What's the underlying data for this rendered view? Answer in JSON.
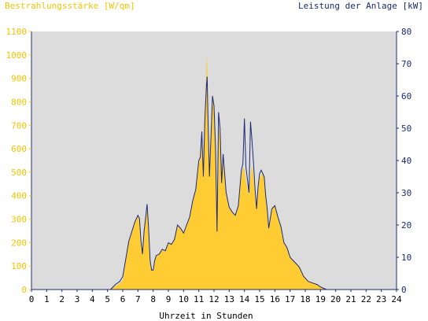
{
  "chart_data": {
    "type": "area",
    "title_left": "Bestrahlungsstärke [W/qm]",
    "title_right": "Leistung der Anlage [kW]",
    "xlabel": "Uhrzeit in Stunden",
    "grid": false,
    "x_ticks": [
      "0",
      "1",
      "2",
      "3",
      "4",
      "5",
      "6",
      "7",
      "8",
      "9",
      "10",
      "11",
      "12",
      "13",
      "14",
      "15",
      "16",
      "17",
      "18",
      "19",
      "20",
      "21",
      "22",
      "23",
      "24"
    ],
    "xlim": [
      0,
      24
    ],
    "y_left": {
      "ticks": [
        "0",
        "100",
        "200",
        "300",
        "400",
        "500",
        "600",
        "700",
        "800",
        "900",
        "1000",
        "1100"
      ],
      "range": [
        0,
        1100
      ]
    },
    "y_right": {
      "ticks": [
        "0",
        "10",
        "20",
        "30",
        "40",
        "50",
        "60",
        "70",
        "80"
      ],
      "range": [
        0,
        80
      ]
    },
    "colors": {
      "plot_background": "#dcdcdc",
      "area_fill": "#ffcc33",
      "line": "#1b2a78",
      "left_axis_text": "#f5c400",
      "right_axis_text": "#1b2a78"
    },
    "series": [
      {
        "axis": "left",
        "style": "area",
        "x": [
          0,
          5.2,
          5.5,
          5.8,
          6.0,
          6.2,
          6.4,
          6.6,
          6.8,
          7.0,
          7.1,
          7.2,
          7.3,
          7.4,
          7.5,
          7.6,
          7.7,
          7.8,
          7.9,
          8.0,
          8.1,
          8.2,
          8.4,
          8.6,
          8.8,
          9.0,
          9.2,
          9.4,
          9.6,
          9.8,
          10.0,
          10.2,
          10.4,
          10.6,
          10.8,
          11.0,
          11.1,
          11.2,
          11.3,
          11.4,
          11.5,
          11.55,
          11.6,
          11.7,
          11.8,
          11.9,
          12.0,
          12.1,
          12.2,
          12.3,
          12.4,
          12.5,
          12.6,
          12.8,
          13.0,
          13.2,
          13.4,
          13.6,
          13.8,
          13.9,
          14.0,
          14.1,
          14.2,
          14.3,
          14.4,
          14.5,
          14.6,
          14.7,
          14.8,
          14.9,
          15.0,
          15.1,
          15.2,
          15.3,
          15.4,
          15.5,
          15.6,
          15.8,
          16.0,
          16.2,
          16.4,
          16.6,
          16.8,
          17.0,
          17.3,
          17.6,
          17.9,
          18.2,
          18.5,
          18.8,
          19.0,
          19.2,
          19.4,
          19.6,
          19.8,
          20,
          24
        ],
        "values": [
          0,
          0,
          15,
          25,
          40,
          120,
          200,
          240,
          290,
          310,
          300,
          200,
          150,
          250,
          300,
          340,
          260,
          120,
          80,
          80,
          120,
          140,
          150,
          170,
          160,
          200,
          190,
          210,
          270,
          260,
          240,
          270,
          310,
          380,
          420,
          540,
          550,
          700,
          460,
          750,
          950,
          1000,
          700,
          450,
          640,
          830,
          780,
          600,
          300,
          700,
          650,
          440,
          560,
          400,
          350,
          330,
          320,
          360,
          480,
          520,
          510,
          460,
          430,
          400,
          480,
          530,
          480,
          400,
          350,
          420,
          480,
          480,
          500,
          470,
          400,
          350,
          260,
          350,
          360,
          310,
          270,
          200,
          180,
          140,
          120,
          100,
          60,
          35,
          30,
          20,
          10,
          5,
          0,
          0,
          0,
          0,
          0
        ]
      },
      {
        "axis": "right",
        "style": "line",
        "x": [
          0,
          5.2,
          5.5,
          5.8,
          6.0,
          6.2,
          6.4,
          6.6,
          6.8,
          7.0,
          7.1,
          7.2,
          7.3,
          7.4,
          7.5,
          7.6,
          7.7,
          7.8,
          7.9,
          8.0,
          8.1,
          8.2,
          8.4,
          8.6,
          8.8,
          9.0,
          9.2,
          9.4,
          9.6,
          9.8,
          10.0,
          10.2,
          10.4,
          10.6,
          10.8,
          11.0,
          11.1,
          11.2,
          11.3,
          11.4,
          11.5,
          11.55,
          11.6,
          11.7,
          11.8,
          11.9,
          12.0,
          12.1,
          12.2,
          12.3,
          12.4,
          12.5,
          12.6,
          12.8,
          13.0,
          13.2,
          13.4,
          13.6,
          13.8,
          13.9,
          14.0,
          14.1,
          14.2,
          14.3,
          14.4,
          14.5,
          14.6,
          14.7,
          14.8,
          14.9,
          15.0,
          15.1,
          15.2,
          15.3,
          15.4,
          15.5,
          15.6,
          15.8,
          16.0,
          16.2,
          16.4,
          16.6,
          16.8,
          17.0,
          17.3,
          17.6,
          17.9,
          18.2,
          18.5,
          18.8,
          19.0,
          19.2,
          19.4,
          19.6,
          19.8,
          20,
          24
        ],
        "values": [
          0,
          0,
          1.5,
          2.5,
          4,
          9.5,
          15,
          18,
          21,
          23,
          22,
          15,
          11,
          18,
          22,
          26.5,
          19,
          9,
          6,
          6,
          9,
          10.5,
          11,
          12.5,
          12,
          14.5,
          14,
          15.5,
          20,
          19,
          17.5,
          20,
          22.5,
          27.5,
          31,
          40,
          41,
          49,
          35,
          53,
          63,
          66,
          54,
          35,
          47,
          60,
          57,
          44,
          18,
          55,
          50,
          33,
          42,
          30,
          25.5,
          24,
          23,
          26,
          37,
          39,
          53,
          38,
          34,
          30,
          52,
          46,
          39,
          31,
          25,
          32,
          36,
          37,
          36,
          35,
          29,
          25,
          19,
          25,
          26,
          22.5,
          19.5,
          14.5,
          13,
          10,
          8.5,
          7,
          4,
          2.5,
          2,
          1.5,
          0.8,
          0.4,
          0,
          0,
          0,
          0,
          0
        ]
      }
    ]
  }
}
